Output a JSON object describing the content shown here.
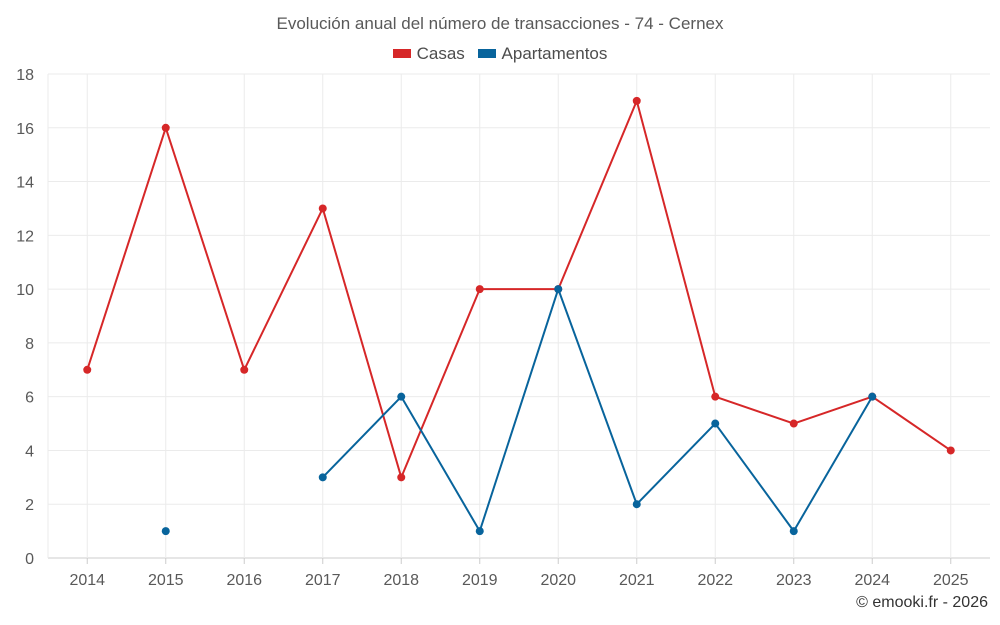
{
  "chart_data": {
    "type": "line",
    "title": "Evolución anual del número de transacciones - 74 - Cernex",
    "categories": [
      "2014",
      "2015",
      "2016",
      "2017",
      "2018",
      "2019",
      "2020",
      "2021",
      "2022",
      "2023",
      "2024",
      "2025"
    ],
    "series": [
      {
        "name": "Casas",
        "color": "#d62728",
        "values": [
          7,
          16,
          7,
          13,
          3,
          10,
          10,
          17,
          6,
          5,
          6,
          4
        ]
      },
      {
        "name": "Apartamentos",
        "color": "#08649c",
        "values": [
          null,
          1,
          null,
          3,
          6,
          1,
          10,
          2,
          5,
          1,
          6,
          null
        ]
      }
    ],
    "yticks": [
      "0",
      "2",
      "4",
      "6",
      "8",
      "10",
      "12",
      "14",
      "16",
      "18"
    ],
    "ylim": [
      0,
      18
    ],
    "xlabel": "",
    "ylabel": "",
    "grid": true,
    "legend_position": "top-center"
  },
  "credit": "© emooki.fr - 2026"
}
